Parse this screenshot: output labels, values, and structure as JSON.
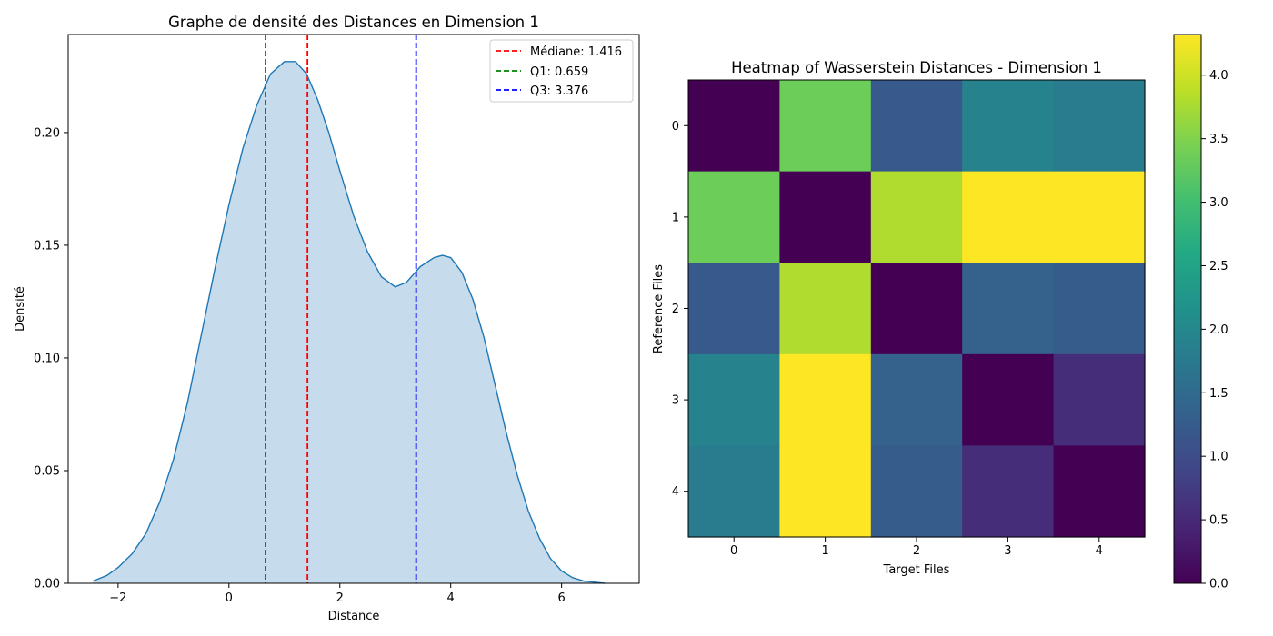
{
  "chart_data": [
    {
      "type": "area",
      "title": "Graphe de densité des Distances en Dimension 1",
      "xlabel": "Distance",
      "ylabel": "Densité",
      "xlim": [
        -2.9,
        7.4
      ],
      "ylim": [
        0,
        0.2435
      ],
      "xticks": [
        -2,
        0,
        2,
        4,
        6
      ],
      "xtick_labels": [
        "−2",
        "0",
        "2",
        "4",
        "6"
      ],
      "yticks": [
        0.0,
        0.05,
        0.1,
        0.15,
        0.2
      ],
      "ytick_labels": [
        "0.00",
        "0.05",
        "0.10",
        "0.15",
        "0.20"
      ],
      "grid": false,
      "fill_color": "#c6dbec",
      "line_color": "#1f77b4",
      "series": [
        {
          "x": [
            -2.45,
            -2.2,
            -2.0,
            -1.75,
            -1.5,
            -1.25,
            -1.0,
            -0.75,
            -0.5,
            -0.25,
            0.0,
            0.25,
            0.5,
            0.75,
            1.0,
            1.2,
            1.4,
            1.6,
            1.8,
            2.0,
            2.25,
            2.5,
            2.75,
            3.0,
            3.2,
            3.45,
            3.7,
            3.85,
            4.0,
            4.2,
            4.4,
            4.6,
            4.8,
            5.0,
            5.2,
            5.4,
            5.6,
            5.8,
            6.0,
            6.2,
            6.4,
            6.6,
            6.78
          ],
          "y": [
            0.001,
            0.0035,
            0.007,
            0.013,
            0.022,
            0.036,
            0.055,
            0.08,
            0.11,
            0.14,
            0.168,
            0.193,
            0.212,
            0.226,
            0.2315,
            0.2315,
            0.226,
            0.2145,
            0.2,
            0.183,
            0.163,
            0.147,
            0.136,
            0.1315,
            0.1335,
            0.1405,
            0.1445,
            0.1455,
            0.1445,
            0.138,
            0.126,
            0.109,
            0.088,
            0.067,
            0.048,
            0.032,
            0.02,
            0.011,
            0.0055,
            0.0025,
            0.001,
            0.0005,
            0.0
          ]
        }
      ],
      "vlines": [
        {
          "label": "Médiane: 1.416",
          "x": 1.416,
          "color": "#ff0000"
        },
        {
          "label": "Q1: 0.659",
          "x": 0.659,
          "color": "#008000"
        },
        {
          "label": "Q3: 3.376",
          "x": 3.376,
          "color": "#0000ff"
        }
      ],
      "legend_position": "top-right"
    },
    {
      "type": "heatmap",
      "title": "Heatmap of Wasserstein Distances - Dimension 1",
      "xlabel": "Target Files",
      "ylabel": "Reference Files",
      "x_categories": [
        "0",
        "1",
        "2",
        "3",
        "4"
      ],
      "y_categories": [
        "0",
        "1",
        "2",
        "3",
        "4"
      ],
      "values": [
        [
          0.0,
          3.35,
          1.2,
          1.9,
          1.8
        ],
        [
          3.35,
          0.0,
          3.8,
          4.32,
          4.32
        ],
        [
          1.2,
          3.8,
          0.0,
          1.35,
          1.25
        ],
        [
          1.9,
          4.32,
          1.35,
          0.0,
          0.55
        ],
        [
          1.8,
          4.32,
          1.25,
          0.55,
          0.0
        ]
      ],
      "colorscale": "viridis",
      "colorbar_range": [
        0.0,
        4.32
      ],
      "colorbar_ticks": [
        0.0,
        0.5,
        1.0,
        1.5,
        2.0,
        2.5,
        3.0,
        3.5,
        4.0
      ],
      "colorbar_tick_labels": [
        "0.0",
        "0.5",
        "1.0",
        "1.5",
        "2.0",
        "2.5",
        "3.0",
        "3.5",
        "4.0"
      ]
    }
  ]
}
